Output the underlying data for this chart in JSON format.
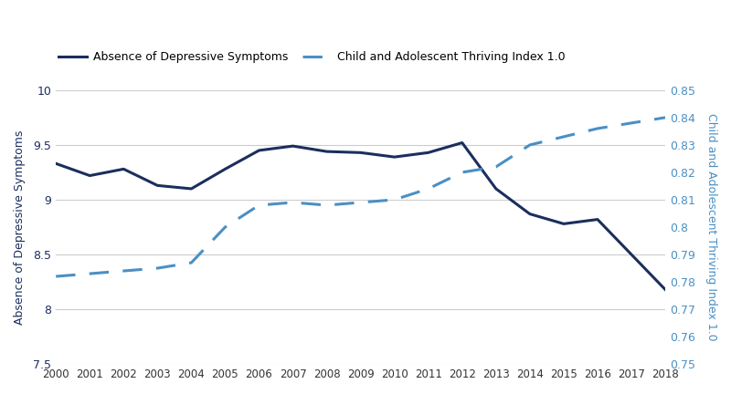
{
  "years": [
    2000,
    2001,
    2002,
    2003,
    2004,
    2005,
    2006,
    2007,
    2008,
    2009,
    2010,
    2011,
    2012,
    2013,
    2014,
    2015,
    2016,
    2017,
    2018
  ],
  "depressive_symptoms": [
    9.33,
    9.22,
    9.28,
    9.13,
    9.1,
    9.28,
    9.45,
    9.49,
    9.44,
    9.43,
    9.39,
    9.43,
    9.52,
    9.1,
    8.87,
    8.78,
    8.82,
    8.5,
    8.18
  ],
  "thriving_index": [
    0.782,
    0.783,
    0.784,
    0.785,
    0.787,
    0.8,
    0.808,
    0.809,
    0.808,
    0.809,
    0.81,
    0.814,
    0.82,
    0.822,
    0.83,
    0.833,
    0.836,
    0.838,
    0.84
  ],
  "line1_color": "#1b2e5e",
  "line2_color": "#4a90c4",
  "left_ylim": [
    7.5,
    10.0
  ],
  "right_ylim": [
    0.75,
    0.85
  ],
  "left_ytick_vals": [
    7.5,
    8.0,
    8.5,
    9.0,
    9.5,
    10.0
  ],
  "left_ytick_labels": [
    "7.5",
    "8",
    "8.5",
    "9",
    "9.5",
    "10"
  ],
  "right_ytick_vals": [
    0.75,
    0.76,
    0.77,
    0.78,
    0.79,
    0.8,
    0.81,
    0.82,
    0.83,
    0.84,
    0.85
  ],
  "right_ytick_labels": [
    "0.75",
    "0.76",
    "0.77",
    "0.78",
    "0.79",
    "0.8",
    "0.81",
    "0.82",
    "0.83",
    "0.84",
    "0.85"
  ],
  "left_ylabel": "Absence of Depressive Symptoms",
  "right_ylabel": "Child and Adolescent Thriving Index 1.0",
  "legend_label1": "Absence of Depressive Symptoms",
  "legend_label2": "Child and Adolescent Thriving Index 1.0",
  "background_color": "#ffffff",
  "grid_color": "#cccccc",
  "tick_color": "#1b2e5e",
  "right_tick_color": "#4a90c4"
}
